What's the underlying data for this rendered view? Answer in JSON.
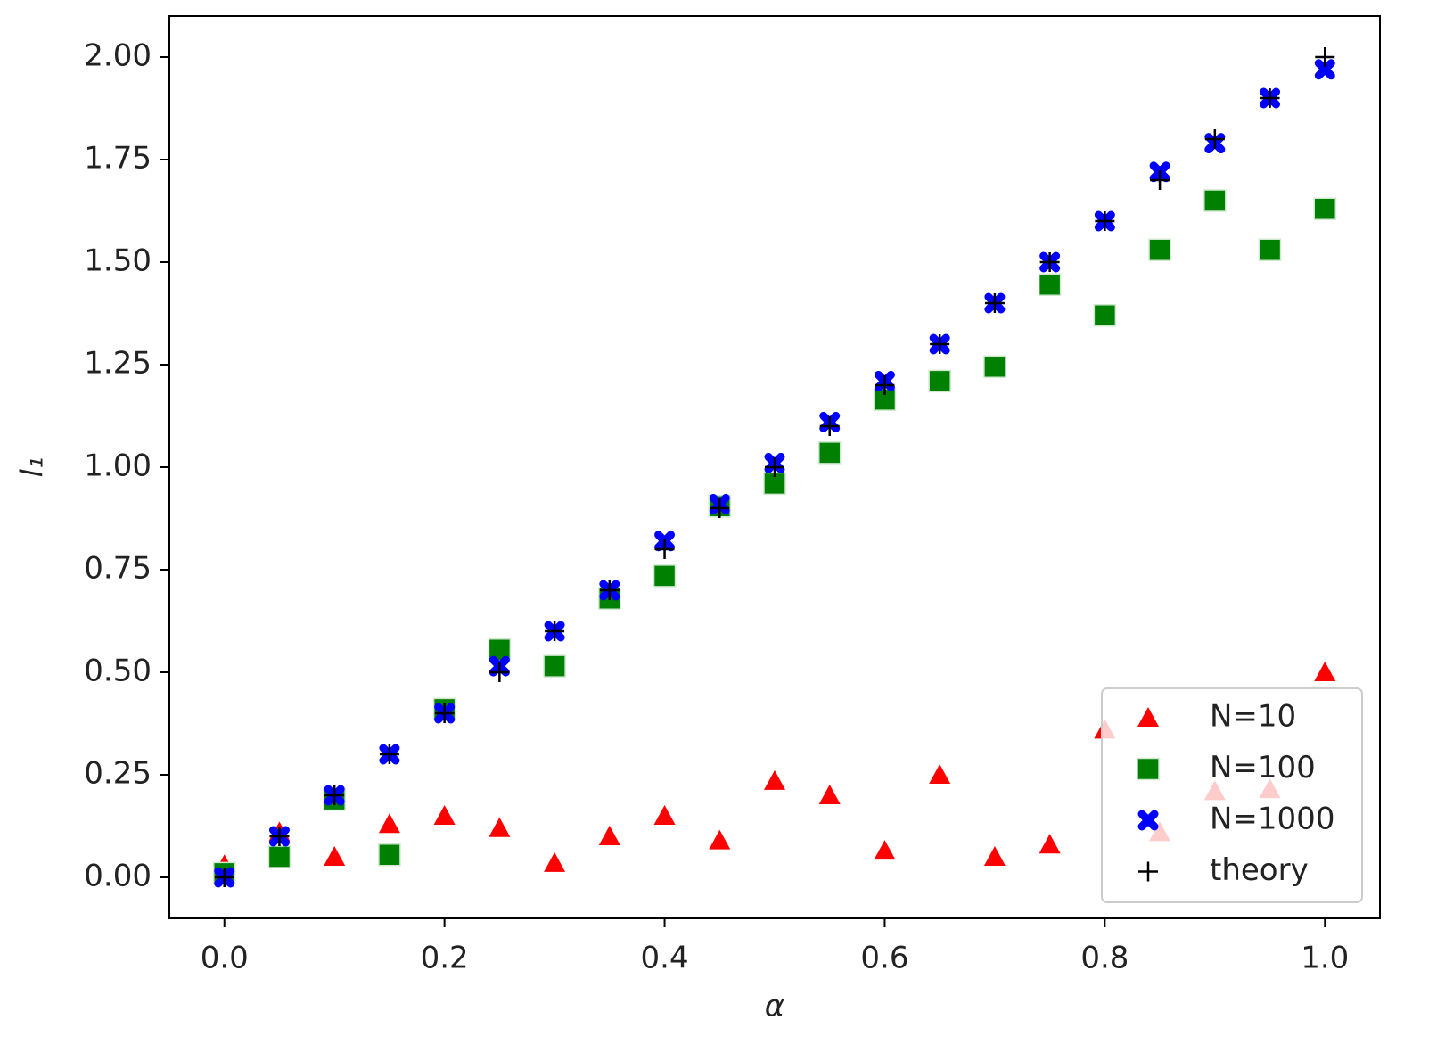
{
  "chart_data": {
    "type": "scatter",
    "x_label": "α",
    "y_label": "l₁",
    "x": [
      0,
      0.05,
      0.1,
      0.15,
      0.2,
      0.25,
      0.3,
      0.35,
      0.4,
      0.45,
      0.5,
      0.55,
      0.6,
      0.65,
      0.7,
      0.75,
      0.8,
      0.85,
      0.9,
      0.95,
      1.0
    ],
    "series": [
      {
        "name": "N=10",
        "color": "#ff0000",
        "marker": "triangle",
        "values": [
          0.03,
          0.11,
          0.05,
          0.13,
          0.15,
          0.12,
          0.035,
          0.1,
          0.15,
          0.09,
          0.235,
          0.2,
          0.065,
          0.25,
          0.05,
          0.08,
          0.36,
          0.11,
          0.21,
          0.215,
          0.5
        ]
      },
      {
        "name": "N=100",
        "color": "#008000",
        "marker": "square",
        "values": [
          0.01,
          0.05,
          0.19,
          0.055,
          0.41,
          0.555,
          0.515,
          0.68,
          0.735,
          0.905,
          0.96,
          1.035,
          1.165,
          1.21,
          1.245,
          1.445,
          1.37,
          1.53,
          1.65,
          1.53,
          1.63
        ]
      },
      {
        "name": "N=1000",
        "color": "#0000ff",
        "marker": "x",
        "values": [
          0,
          0.1,
          0.2,
          0.3,
          0.4,
          0.515,
          0.6,
          0.7,
          0.82,
          0.91,
          1.01,
          1.11,
          1.21,
          1.3,
          1.4,
          1.5,
          1.6,
          1.72,
          1.79,
          1.9,
          1.97
        ]
      },
      {
        "name": "theory",
        "color": "#000000",
        "marker": "plus",
        "values": [
          0,
          0.1,
          0.2,
          0.3,
          0.4,
          0.5,
          0.6,
          0.7,
          0.8,
          0.9,
          1.0,
          1.1,
          1.2,
          1.3,
          1.4,
          1.5,
          1.6,
          1.7,
          1.8,
          1.9,
          2.0
        ]
      }
    ],
    "xlim": [
      -0.05,
      1.05
    ],
    "ylim": [
      -0.1,
      2.1
    ],
    "xticks": [
      {
        "value": 0,
        "label": "0.0"
      },
      0.2,
      0.4,
      0.6,
      0.8,
      {
        "value": 1,
        "label": "1.0"
      }
    ],
    "yticks": [
      {
        "value": 0,
        "label": "0.00"
      },
      0.25,
      {
        "value": 0.5,
        "label": "0.50"
      },
      0.75,
      {
        "value": 1,
        "label": "1.00"
      },
      1.25,
      {
        "value": 1.5,
        "label": "1.50"
      },
      1.75,
      {
        "value": 2,
        "label": "2.00"
      }
    ],
    "legend": "lower right"
  }
}
